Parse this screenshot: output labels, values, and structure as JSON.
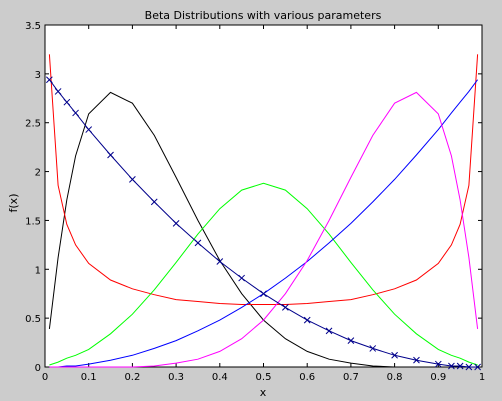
{
  "window": {
    "background": "#cccccc",
    "axes_background": "#ffffff"
  },
  "chart_data": {
    "type": "line",
    "title": "Beta Distributions with various parameters",
    "xlabel": "x",
    "ylabel": "f(x)",
    "xlim": [
      0,
      1
    ],
    "ylim": [
      0,
      3.5
    ],
    "xticks": [
      "0",
      "0.1",
      "0.2",
      "0.3",
      "0.4",
      "0.5",
      "0.6",
      "0.7",
      "0.8",
      "0.9",
      "1"
    ],
    "yticks": [
      "0",
      "0.5",
      "1",
      "1.5",
      "2",
      "2.5",
      "3",
      "3.5"
    ],
    "grid": false,
    "legend": false,
    "x": [
      0.01,
      0.03,
      0.05,
      0.07,
      0.1,
      0.15,
      0.2,
      0.25,
      0.3,
      0.35,
      0.4,
      0.45,
      0.5,
      0.55,
      0.6,
      0.65,
      0.7,
      0.75,
      0.8,
      0.85,
      0.9,
      0.93,
      0.95,
      0.97,
      0.99
    ],
    "series": [
      {
        "color": "#000000",
        "marker": "none",
        "values": [
          0.39,
          1.12,
          1.71,
          2.16,
          2.59,
          2.81,
          2.7,
          2.37,
          1.94,
          1.5,
          1.09,
          0.75,
          0.48,
          0.29,
          0.16,
          0.08,
          0.04,
          0.01,
          0.0,
          0.0,
          0.0,
          0.0,
          0.0,
          0.0,
          0.0
        ]
      },
      {
        "color": "#ff0000",
        "marker": "none",
        "values": [
          3.2,
          1.86,
          1.46,
          1.25,
          1.06,
          0.89,
          0.8,
          0.74,
          0.69,
          0.67,
          0.65,
          0.64,
          0.64,
          0.64,
          0.65,
          0.67,
          0.69,
          0.74,
          0.8,
          0.89,
          1.06,
          1.25,
          1.46,
          1.86,
          3.2
        ]
      },
      {
        "color": "#00ff00",
        "marker": "none",
        "values": [
          0.02,
          0.05,
          0.09,
          0.12,
          0.18,
          0.34,
          0.54,
          0.79,
          1.07,
          1.36,
          1.62,
          1.81,
          1.88,
          1.81,
          1.62,
          1.36,
          1.07,
          0.79,
          0.54,
          0.34,
          0.18,
          0.12,
          0.09,
          0.05,
          0.02
        ]
      },
      {
        "color": "#0000ff",
        "marker": "none",
        "values": [
          0.0,
          0.0,
          0.01,
          0.01,
          0.03,
          0.07,
          0.12,
          0.19,
          0.27,
          0.37,
          0.48,
          0.61,
          0.75,
          0.91,
          1.08,
          1.27,
          1.47,
          1.69,
          1.92,
          2.17,
          2.43,
          2.6,
          2.71,
          2.82,
          2.94
        ]
      },
      {
        "color": "#ff00ff",
        "marker": "none",
        "values": [
          0.0,
          0.0,
          0.0,
          0.0,
          0.0,
          0.0,
          0.0,
          0.01,
          0.04,
          0.08,
          0.16,
          0.29,
          0.48,
          0.75,
          1.09,
          1.5,
          1.94,
          2.37,
          2.7,
          2.81,
          2.59,
          2.16,
          1.71,
          1.12,
          0.39
        ]
      },
      {
        "color": "#00008b",
        "marker": "x",
        "values": [
          2.94,
          2.82,
          2.71,
          2.6,
          2.43,
          2.17,
          1.92,
          1.69,
          1.47,
          1.27,
          1.08,
          0.91,
          0.75,
          0.61,
          0.48,
          0.37,
          0.27,
          0.19,
          0.12,
          0.07,
          0.03,
          0.01,
          0.01,
          0.0,
          0.0
        ]
      }
    ]
  }
}
